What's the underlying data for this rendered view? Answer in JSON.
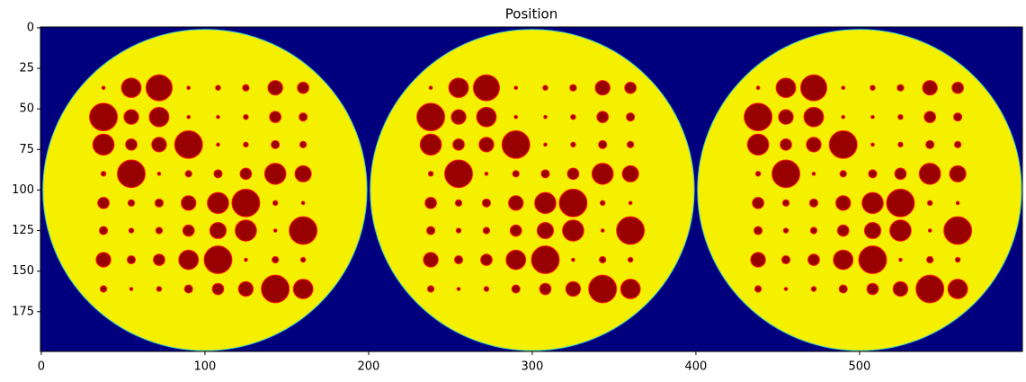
{
  "chart_data": {
    "type": "image",
    "title": "Position",
    "xlim": [
      -0.5,
      599.5
    ],
    "ylim": [
      199.5,
      -0.5
    ],
    "xticks": [
      0,
      100,
      200,
      300,
      400,
      500
    ],
    "yticks": [
      0,
      25,
      50,
      75,
      100,
      125,
      150,
      175
    ],
    "background_color": "#00007f",
    "disc_color": "#f5f000",
    "spot_color": "#990000",
    "spot_edge_color": "#ff1a00",
    "panels": [
      {
        "center": [
          100,
          100
        ],
        "radius": 99,
        "columns": [
          38,
          55,
          72,
          90,
          108,
          125,
          143,
          160
        ]
      },
      {
        "center": [
          300,
          100
        ],
        "radius": 99,
        "columns": [
          238,
          255,
          272,
          290,
          308,
          325,
          343,
          360
        ]
      },
      {
        "center": [
          500,
          100
        ],
        "radius": 99,
        "columns": [
          438,
          455,
          472,
          490,
          508,
          525,
          543,
          560
        ]
      }
    ],
    "rows": [
      37,
      55,
      72,
      90,
      108,
      125,
      143,
      161
    ],
    "spot_radii": [
      [
        1,
        6,
        8,
        1,
        1.5,
        2,
        4.5,
        3.5
      ],
      [
        8.5,
        4.5,
        6,
        1,
        1,
        1.5,
        3.5,
        2.5
      ],
      [
        6.5,
        3.5,
        4.5,
        8.5,
        1,
        1.5,
        2.5,
        2
      ],
      [
        1.5,
        8.5,
        1,
        2,
        2.5,
        3.5,
        6.5,
        5
      ],
      [
        3.5,
        2,
        2.5,
        4.5,
        6.5,
        8.5,
        1.5,
        1
      ],
      [
        2.5,
        1.5,
        2,
        3.5,
        5,
        6.5,
        1,
        8.5
      ],
      [
        4.5,
        2.5,
        3.5,
        6,
        8.5,
        1,
        2,
        1.5
      ],
      [
        2,
        1,
        1.5,
        2.5,
        3.5,
        4.5,
        8.5,
        6
      ]
    ]
  }
}
